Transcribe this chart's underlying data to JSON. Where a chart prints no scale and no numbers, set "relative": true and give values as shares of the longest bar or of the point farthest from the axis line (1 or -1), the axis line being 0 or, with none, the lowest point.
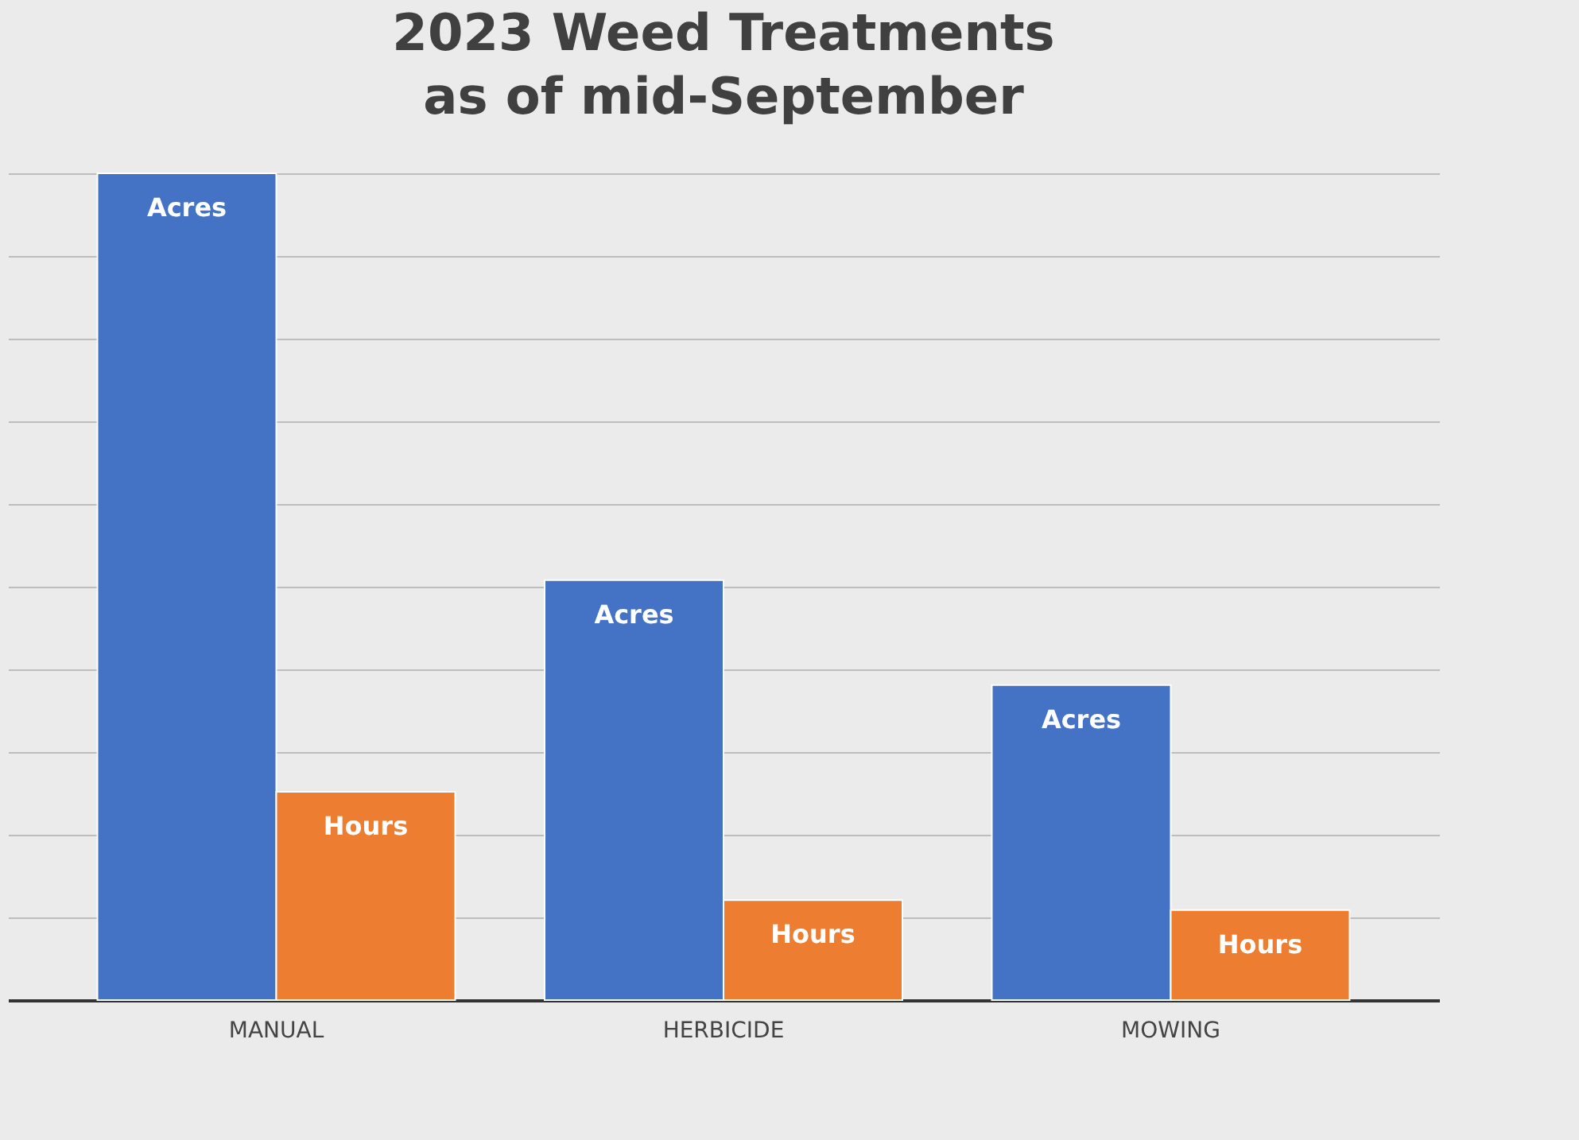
{
  "chart_data": {
    "type": "bar",
    "title": "2023 Weed Treatments",
    "subtitle": "as of mid-September",
    "categories": [
      "MANUAL",
      "HERBICIDE",
      "MOWING"
    ],
    "relative": true,
    "grid": "y",
    "series": [
      {
        "name": "Acres",
        "color": "#4472c4",
        "values": [
          1,
          0.508,
          0.381
        ]
      },
      {
        "name": "Hours",
        "color": "#ed7d31",
        "values": [
          0.252,
          0.121,
          0.109
        ]
      }
    ]
  }
}
